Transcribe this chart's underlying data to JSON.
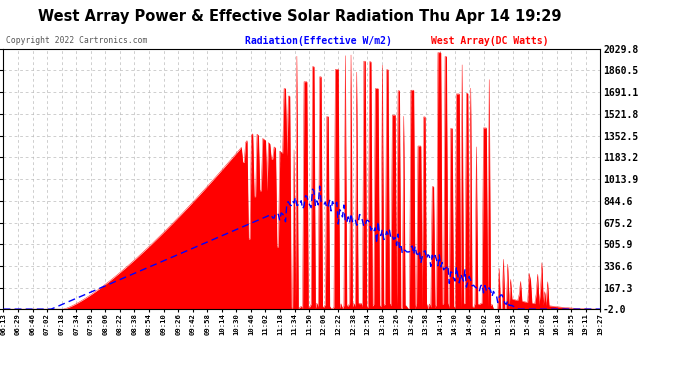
{
  "title": "West Array Power & Effective Solar Radiation Thu Apr 14 19:29",
  "copyright": "Copyright 2022 Cartronics.com",
  "legend_radiation": "Radiation(Effective W/m2)",
  "legend_west": "West Array(DC Watts)",
  "yticks": [
    2029.8,
    1860.5,
    1691.1,
    1521.8,
    1352.5,
    1183.2,
    1013.9,
    844.6,
    675.2,
    505.9,
    336.6,
    167.3,
    -2.0
  ],
  "ymin": -2.0,
  "ymax": 2029.8,
  "bg_color": "#ffffff",
  "plot_bg_color": "#ffffff",
  "title_color": "#000000",
  "radiation_color": "#0000ff",
  "west_color": "#ff0000",
  "grid_color": "#bbbbbb",
  "xtick_labels": [
    "06:13",
    "06:29",
    "06:46",
    "07:02",
    "07:18",
    "07:34",
    "07:50",
    "08:06",
    "08:22",
    "08:38",
    "08:54",
    "09:10",
    "09:26",
    "09:42",
    "09:58",
    "10:14",
    "10:30",
    "10:46",
    "11:02",
    "11:18",
    "11:34",
    "11:50",
    "12:06",
    "12:22",
    "12:38",
    "12:54",
    "13:10",
    "13:26",
    "13:42",
    "13:58",
    "14:14",
    "14:30",
    "14:46",
    "15:02",
    "15:18",
    "15:35",
    "15:46",
    "16:02",
    "16:18",
    "18:55",
    "19:11",
    "19:27"
  ]
}
